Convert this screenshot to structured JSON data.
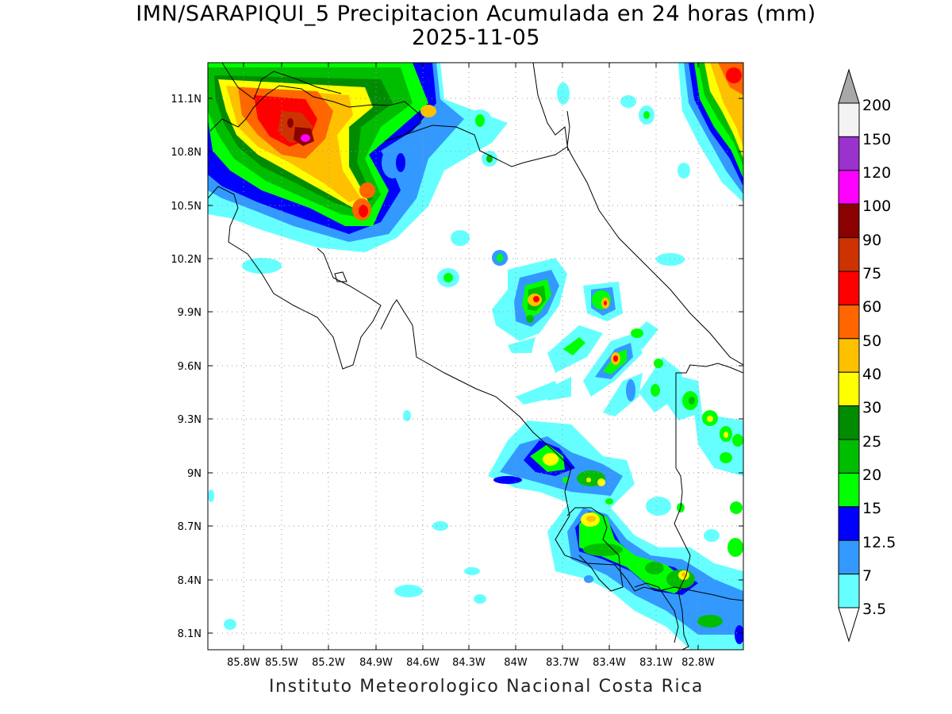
{
  "title_line1": "IMN/SARAPIQUI_5 Precipitacion Acumulada en 24 horas (mm)",
  "title_line2": "2025-11-05",
  "footer": "Instituto Meteorologico Nacional Costa Rica",
  "lat_labels": [
    "11.1N",
    "10.8N",
    "10.5N",
    "10.2N",
    "9.9N",
    "9.6N",
    "9.3N",
    "9N",
    "8.7N",
    "8.4N",
    "8.1N"
  ],
  "lon_labels": [
    "85.8W",
    "85.5W",
    "85.2W",
    "84.9W",
    "84.6W",
    "84.3W",
    "84W",
    "83.7W",
    "83.4W",
    "83.1W",
    "82.8W"
  ],
  "colorbar": {
    "labels": [
      "200",
      "150",
      "120",
      "100",
      "90",
      "75",
      "60",
      "50",
      "40",
      "30",
      "25",
      "20",
      "15",
      "12.5",
      "7",
      "3.5"
    ],
    "colors": [
      "#f3f3f3",
      "#9a32cd",
      "#ff00ff",
      "#8b0000",
      "#cd3300",
      "#ff0000",
      "#ff6600",
      "#ffc000",
      "#ffff00",
      "#008b00",
      "#00bd00",
      "#00ff00",
      "#0000ff",
      "#3399ff",
      "#66ffff"
    ],
    "over_color": "#a8a8a8",
    "under_color": "#ffffff"
  },
  "legend_colors": {
    "c3_5": "#66ffff",
    "c7": "#3399ff",
    "c12_5": "#0000ff",
    "c15": "#00ff00",
    "c20": "#00bd00",
    "c25": "#008b00",
    "c30": "#ffff00",
    "c40": "#ffc000",
    "c50": "#ff6600",
    "c60": "#ff0000",
    "c75": "#cd3300",
    "c90": "#8b0000",
    "c120": "#ff00ff"
  }
}
